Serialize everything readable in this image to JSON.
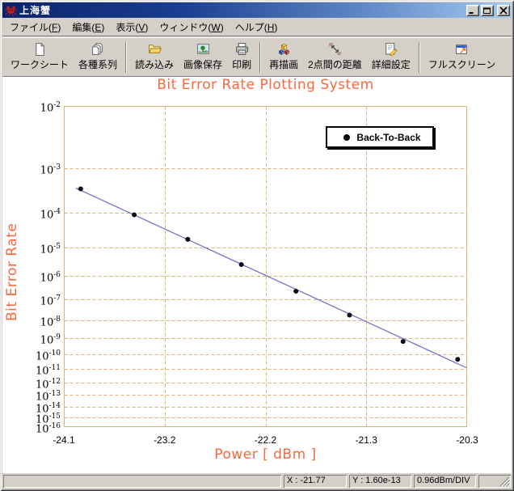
{
  "window": {
    "title": "上海蟹",
    "controls": [
      {
        "name": "minimize",
        "glyph": "minimize-icon"
      },
      {
        "name": "maximize",
        "glyph": "maximize-icon"
      },
      {
        "name": "close",
        "glyph": "close-icon"
      }
    ]
  },
  "menu": {
    "items": [
      {
        "id": "file",
        "label": "ファイル(F)"
      },
      {
        "id": "edit",
        "label": "編集(E)"
      },
      {
        "id": "view",
        "label": "表示(V)"
      },
      {
        "id": "window",
        "label": "ウィンドウ(W)"
      },
      {
        "id": "help",
        "label": "ヘルプ(H)"
      }
    ]
  },
  "toolbar": {
    "groups": [
      {
        "buttons": [
          {
            "id": "worksheet",
            "icon": "worksheet-icon",
            "label": "ワークシート"
          },
          {
            "id": "series-list",
            "icon": "series-icon",
            "label": "各種系列"
          }
        ]
      },
      {
        "buttons": [
          {
            "id": "load",
            "icon": "open-folder-icon",
            "label": "読み込み"
          },
          {
            "id": "save-image",
            "icon": "save-image-icon",
            "label": "画像保存"
          },
          {
            "id": "print",
            "icon": "printer-icon",
            "label": "印刷"
          }
        ]
      },
      {
        "buttons": [
          {
            "id": "redraw",
            "icon": "redraw-cubes-icon",
            "label": "再描画"
          },
          {
            "id": "two-point-distance",
            "icon": "distance-icon",
            "label": "2点間の距離"
          },
          {
            "id": "detail-settings",
            "icon": "settings-icon",
            "label": "詳細設定"
          }
        ]
      },
      {
        "buttons": [
          {
            "id": "fullscreen",
            "icon": "fullscreen-icon",
            "label": "フルスクリーン"
          }
        ]
      }
    ]
  },
  "chart_data": {
    "type": "scatter",
    "title": "Bit Error Rate Plotting System",
    "xlabel": "Power [ dBm ]",
    "ylabel": "Bit Error Rate",
    "x_ticks": [
      "-24.1",
      "-23.2",
      "-22.2",
      "-21.3",
      "-20.3"
    ],
    "xlim": [
      -24.14,
      -20.3
    ],
    "x_div_dbm": 0.96,
    "y_scale": "double-log BER scale: vertical position proportional to log10(-log10(BER))",
    "y_tick_exponents": [
      -2,
      -3,
      -4,
      -5,
      -6,
      -7,
      -8,
      -9,
      -10,
      -11,
      -12,
      -13,
      -14,
      -15,
      -16
    ],
    "ylim_exponents": [
      -2,
      -16
    ],
    "grid": "dashed, on every decade and every x division",
    "legend": {
      "position": "top-right",
      "entries": [
        "Back-To-Back"
      ]
    },
    "series": [
      {
        "name": "Back-To-Back",
        "marker": "filled-circle",
        "fit_line": true,
        "points": [
          {
            "power_dbm": -23.98,
            "ber": 0.00038
          },
          {
            "power_dbm": -23.47,
            "ber": 9e-05
          },
          {
            "power_dbm": -22.96,
            "ber": 1.8e-05
          },
          {
            "power_dbm": -22.45,
            "ber": 2.6e-06
          },
          {
            "power_dbm": -21.93,
            "ber": 2.3e-07
          },
          {
            "power_dbm": -21.42,
            "ber": 1.8e-08
          },
          {
            "power_dbm": -20.91,
            "ber": 6.5e-10
          },
          {
            "power_dbm": -20.39,
            "ber": 4.8e-11
          }
        ]
      }
    ]
  },
  "status_bar": {
    "x_readout": "X : -21.77",
    "y_readout": "Y : 1.60e-13",
    "scale_readout": "0.96dBm/DIV"
  },
  "colors": {
    "chrome": "#D4D0C8",
    "accent_orange": "#F8683C",
    "grid_tan": "#DCB172",
    "fit_line_blue": "#7373CB",
    "marker_black": "#0A0A14",
    "titlebar_left": "#0A246A",
    "titlebar_right": "#A6CAF0"
  }
}
